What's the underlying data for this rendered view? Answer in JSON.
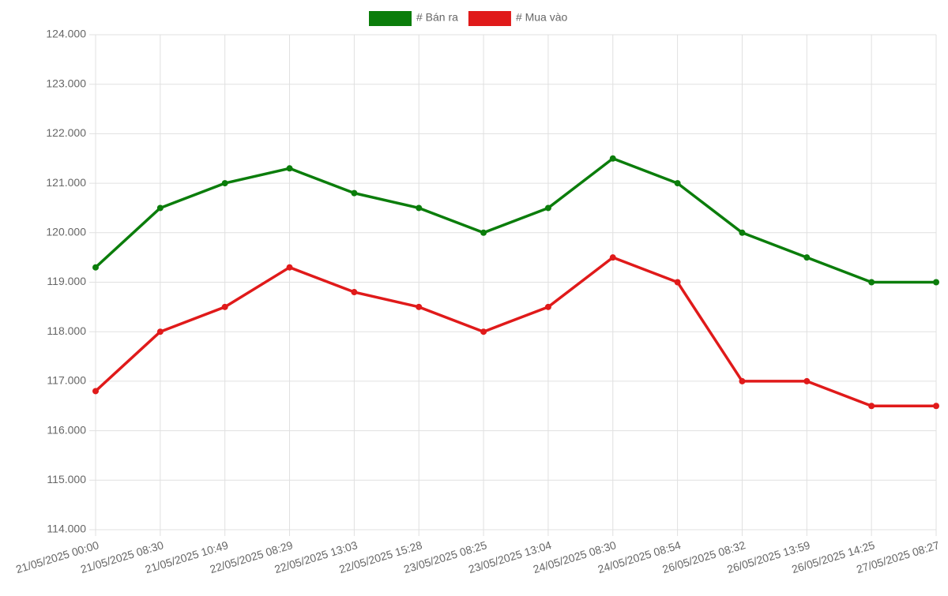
{
  "chart_data": {
    "type": "line",
    "categories": [
      "21/05/2025 00:00",
      "21/05/2025 08:30",
      "21/05/2025 10:49",
      "22/05/2025 08:29",
      "22/05/2025 13:03",
      "22/05/2025 15:28",
      "23/05/2025 08:25",
      "23/05/2025 13:04",
      "24/05/2025 08:30",
      "24/05/2025 08:54",
      "26/05/2025 08:32",
      "26/05/2025 13:59",
      "26/05/2025 14:25",
      "27/05/2025 08:27"
    ],
    "series": [
      {
        "name": "# Bán ra",
        "color": "#0b7d0b",
        "values": [
          119300,
          120500,
          121000,
          121300,
          120800,
          120500,
          120000,
          120500,
          121500,
          121000,
          120000,
          119500,
          119000,
          119000
        ]
      },
      {
        "name": "# Mua vào",
        "color": "#e01a1a",
        "values": [
          116800,
          118000,
          118500,
          119300,
          118800,
          118500,
          118000,
          118500,
          119500,
          119000,
          117000,
          117000,
          116500,
          116500
        ]
      }
    ],
    "ylim": [
      114000,
      124000
    ],
    "yticks": [
      {
        "value": 114000,
        "label": "114.000"
      },
      {
        "value": 115000,
        "label": "115.000"
      },
      {
        "value": 116000,
        "label": "116.000"
      },
      {
        "value": 117000,
        "label": "117.000"
      },
      {
        "value": 118000,
        "label": "118.000"
      },
      {
        "value": 119000,
        "label": "119.000"
      },
      {
        "value": 120000,
        "label": "120.000"
      },
      {
        "value": 121000,
        "label": "121.000"
      },
      {
        "value": 122000,
        "label": "122.000"
      },
      {
        "value": 123000,
        "label": "123.000"
      },
      {
        "value": 124000,
        "label": "124.000"
      }
    ],
    "grid": true,
    "legend": "top"
  }
}
